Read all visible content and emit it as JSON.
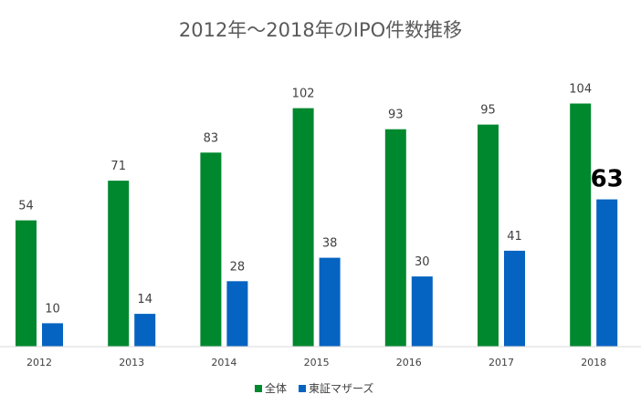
{
  "chart_data": {
    "type": "bar",
    "title": "2012年～2018年のIPO件数推移",
    "categories": [
      "2012",
      "2013",
      "2014",
      "2015",
      "2016",
      "2017",
      "2018"
    ],
    "series": [
      {
        "name": "全体",
        "values": [
          54,
          71,
          83,
          102,
          93,
          95,
          104
        ],
        "color": "#00882E"
      },
      {
        "name": "東証マザーズ",
        "values": [
          10,
          14,
          28,
          38,
          30,
          41,
          63
        ],
        "color": "#0563C1"
      }
    ],
    "xlabel": "",
    "ylabel": "",
    "ylim": [
      0,
      110
    ],
    "grid": false,
    "y_axis_visible": false,
    "data_labels": true,
    "emphasized_label": {
      "series": "東証マザーズ",
      "category": "2018",
      "value": 63
    },
    "legend_position": "bottom"
  }
}
